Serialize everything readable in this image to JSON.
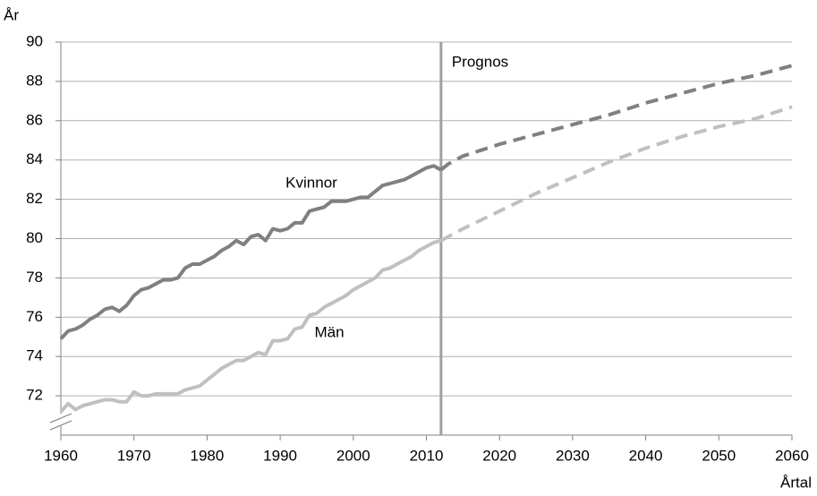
{
  "chart_data": {
    "type": "line",
    "y_label": "År",
    "x_label": "Årtal",
    "xlim": [
      1960,
      2060
    ],
    "xticks": [
      1960,
      1970,
      1980,
      1990,
      2000,
      2010,
      2020,
      2030,
      2040,
      2050,
      2060
    ],
    "ylim": [
      70,
      90
    ],
    "yticks": [
      72,
      74,
      76,
      78,
      80,
      82,
      84,
      86,
      88,
      90
    ],
    "grid": true,
    "annotations": [
      {
        "text": "Prognos",
        "x": 2012
      }
    ],
    "series": [
      {
        "name": "Kvinnor",
        "color": "#808080",
        "x": [
          1960,
          1961,
          1962,
          1963,
          1964,
          1965,
          1966,
          1967,
          1968,
          1969,
          1970,
          1971,
          1972,
          1973,
          1974,
          1975,
          1976,
          1977,
          1978,
          1979,
          1980,
          1981,
          1982,
          1983,
          1984,
          1985,
          1986,
          1987,
          1988,
          1989,
          1990,
          1991,
          1992,
          1993,
          1994,
          1995,
          1996,
          1997,
          1998,
          1999,
          2000,
          2001,
          2002,
          2003,
          2004,
          2005,
          2006,
          2007,
          2008,
          2009,
          2010,
          2011,
          2012,
          2013,
          2015,
          2020,
          2025,
          2030,
          2035,
          2040,
          2045,
          2050,
          2055,
          2060
        ],
        "values": [
          74.9,
          75.3,
          75.4,
          75.6,
          75.9,
          76.1,
          76.4,
          76.5,
          76.3,
          76.6,
          77.1,
          77.4,
          77.5,
          77.7,
          77.9,
          77.9,
          78.0,
          78.5,
          78.7,
          78.7,
          78.9,
          79.1,
          79.4,
          79.6,
          79.9,
          79.7,
          80.1,
          80.2,
          79.9,
          80.5,
          80.4,
          80.5,
          80.8,
          80.8,
          81.4,
          81.5,
          81.6,
          81.9,
          81.9,
          81.9,
          82.0,
          82.1,
          82.1,
          82.4,
          82.7,
          82.8,
          82.9,
          83.0,
          83.2,
          83.4,
          83.6,
          83.7,
          83.5,
          83.8,
          84.2,
          84.8,
          85.3,
          85.8,
          86.3,
          86.9,
          87.4,
          87.9,
          88.3,
          88.8
        ]
      },
      {
        "name": "Män",
        "color": "#c0c0c0",
        "x": [
          1960,
          1961,
          1962,
          1963,
          1964,
          1965,
          1966,
          1967,
          1968,
          1969,
          1970,
          1971,
          1972,
          1973,
          1974,
          1975,
          1976,
          1977,
          1978,
          1979,
          1980,
          1981,
          1982,
          1983,
          1984,
          1985,
          1986,
          1987,
          1988,
          1989,
          1990,
          1991,
          1992,
          1993,
          1994,
          1995,
          1996,
          1997,
          1998,
          1999,
          2000,
          2001,
          2002,
          2003,
          2004,
          2005,
          2006,
          2007,
          2008,
          2009,
          2010,
          2011,
          2012,
          2013,
          2015,
          2020,
          2025,
          2030,
          2035,
          2040,
          2045,
          2050,
          2055,
          2060
        ],
        "values": [
          71.2,
          71.6,
          71.3,
          71.5,
          71.6,
          71.7,
          71.8,
          71.8,
          71.7,
          71.7,
          72.2,
          72.0,
          72.0,
          72.1,
          72.1,
          72.1,
          72.1,
          72.3,
          72.4,
          72.5,
          72.8,
          73.1,
          73.4,
          73.6,
          73.8,
          73.8,
          74.0,
          74.2,
          74.1,
          74.8,
          74.8,
          74.9,
          75.4,
          75.5,
          76.1,
          76.2,
          76.5,
          76.7,
          76.9,
          77.1,
          77.4,
          77.6,
          77.8,
          78.0,
          78.4,
          78.5,
          78.7,
          78.9,
          79.1,
          79.4,
          79.6,
          79.8,
          79.9,
          80.1,
          80.5,
          81.4,
          82.3,
          83.1,
          83.9,
          84.6,
          85.2,
          85.7,
          86.1,
          86.7
        ]
      }
    ]
  }
}
